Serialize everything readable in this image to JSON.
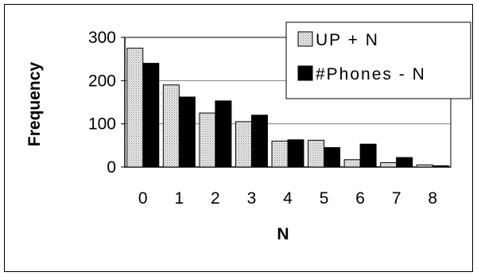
{
  "chart_data": {
    "type": "bar",
    "categories": [
      "0",
      "1",
      "2",
      "3",
      "4",
      "5",
      "6",
      "7",
      "8"
    ],
    "series": [
      {
        "name": "UP + N",
        "values": [
          275,
          190,
          125,
          105,
          60,
          62,
          17,
          10,
          5
        ],
        "color": "#dddddd",
        "pattern": "dotted"
      },
      {
        "name": "#Phones - N",
        "values": [
          240,
          162,
          153,
          120,
          63,
          45,
          53,
          22,
          3
        ],
        "color": "#000000",
        "pattern": "solid"
      }
    ],
    "xlabel": "N",
    "ylabel": "Frequency",
    "ylim": [
      0,
      300
    ],
    "yticks": [
      "0",
      "100",
      "200",
      "300"
    ],
    "grid": true,
    "legend": "top-right"
  }
}
